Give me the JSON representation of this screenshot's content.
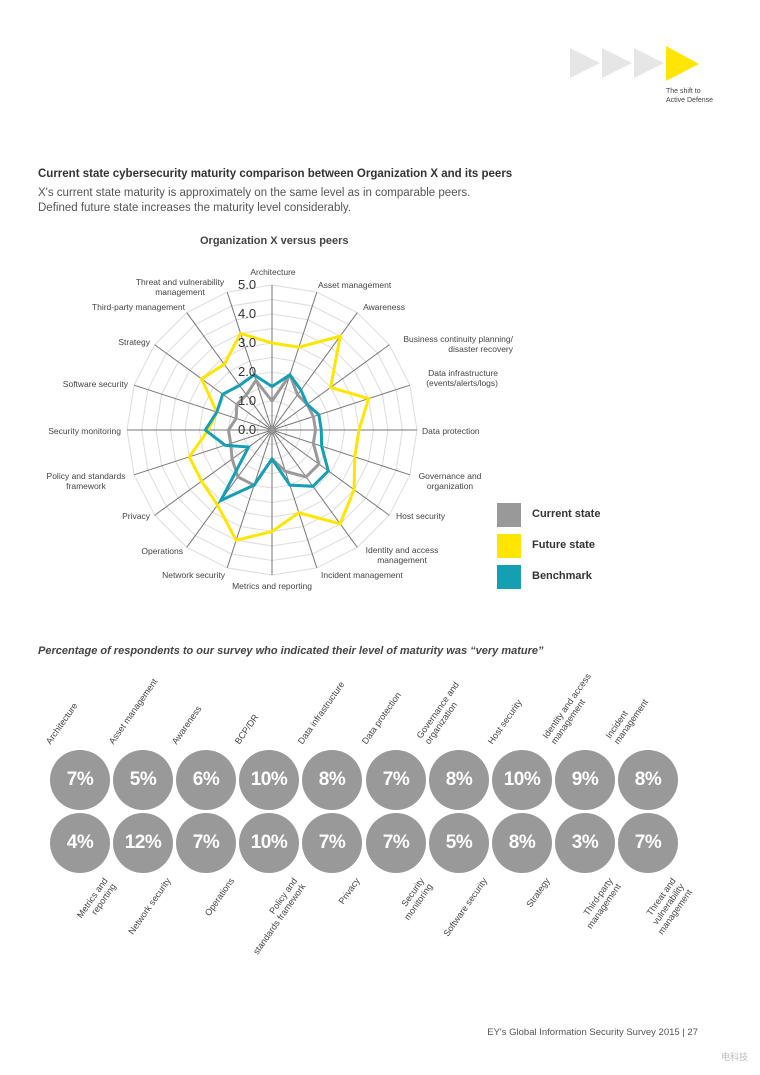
{
  "header": {
    "brand_text": "The shift to\nActive Defense",
    "arrow_colors": [
      "#e6e6e6",
      "#e6e6e6",
      "#e6e6e6",
      "#ffe600"
    ]
  },
  "section": {
    "title": "Current state cybersecurity maturity comparison between Organization X and its peers",
    "intro": "X's current state maturity is approximately on the same level as in comparable peers.\nDefined future state increases the maturity level considerably."
  },
  "chart_data": {
    "type": "radar",
    "title": "Organization X versus peers",
    "axes": [
      "Architecture",
      "Asset management",
      "Awareness",
      "Business continuity planning/\ndisaster recovery",
      "Data infrastructure\n(events/alerts/logs)",
      "Data protection",
      "Governance and\norganization",
      "Host security",
      "Identity and access\nmanagement",
      "Incident management",
      "Metrics and reporting",
      "Network security",
      "Operations",
      "Privacy",
      "Policy and standards\nframework",
      "Security monitoring",
      "Software security",
      "Strategy",
      "Third-party management",
      "Threat and vulnerability\nmanagement"
    ],
    "range": [
      0,
      5
    ],
    "tick_labels": [
      "0.0",
      "1.0",
      "2.0",
      "3.0",
      "4.0",
      "5.0"
    ],
    "series": [
      {
        "name": "Current state",
        "color": "#999999",
        "values": [
          1.0,
          2.0,
          1.5,
          1.5,
          1.5,
          1.5,
          1.5,
          2.0,
          2.0,
          1.5,
          1.0,
          2.0,
          2.0,
          1.7,
          1.5,
          1.5,
          1.3,
          1.5,
          1.5,
          1.8
        ]
      },
      {
        "name": "Future state",
        "color": "#ffe600",
        "values": [
          3.0,
          3.0,
          4.0,
          2.5,
          3.5,
          3.0,
          3.0,
          3.5,
          4.0,
          3.0,
          3.5,
          4.0,
          3.2,
          3.0,
          3.0,
          2.2,
          2.0,
          3.0,
          2.8,
          3.5
        ]
      },
      {
        "name": "Benchmark",
        "color": "#159fb3",
        "values": [
          1.5,
          2.0,
          1.7,
          1.5,
          1.7,
          1.7,
          1.8,
          2.4,
          2.4,
          2.0,
          1.0,
          2.0,
          3.0,
          1.0,
          1.7,
          2.3,
          2.0,
          2.1,
          1.9,
          2.0
        ]
      }
    ],
    "legend": "right"
  },
  "survey": {
    "title": "Percentage of respondents to our survey who indicated their level of maturity was “very mature”",
    "top_row": [
      {
        "label": "Architecture",
        "value": "7%"
      },
      {
        "label": "Asset management",
        "value": "5%"
      },
      {
        "label": "Awareness",
        "value": "6%"
      },
      {
        "label": "BCP/DR",
        "value": "10%"
      },
      {
        "label": "Data infrastructure",
        "value": "8%"
      },
      {
        "label": "Data protection",
        "value": "7%"
      },
      {
        "label": "Governance and\norganization",
        "value": "8%"
      },
      {
        "label": "Host security",
        "value": "10%"
      },
      {
        "label": "Identity and access\nmanagement",
        "value": "9%"
      },
      {
        "label": "Incident\nmanagement",
        "value": "8%"
      }
    ],
    "bottom_row": [
      {
        "label": "Metrics and\nreporting",
        "value": "4%"
      },
      {
        "label": "Network security",
        "value": "12%"
      },
      {
        "label": "Operations",
        "value": "7%"
      },
      {
        "label": "Policy and\nstandards framework",
        "value": "10%"
      },
      {
        "label": "Privacy",
        "value": "7%"
      },
      {
        "label": "Security\nmonitoring",
        "value": "7%"
      },
      {
        "label": "Software security",
        "value": "5%"
      },
      {
        "label": "Strategy",
        "value": "8%"
      },
      {
        "label": "Third-party\nmanagement",
        "value": "3%"
      },
      {
        "label": "Threat and\nvulnerability\nmanagement",
        "value": "7%"
      }
    ]
  },
  "footer": {
    "text": "EY's Global Information Security Survey 2015 | 27",
    "watermark": "电科技 DIANKEJI"
  }
}
